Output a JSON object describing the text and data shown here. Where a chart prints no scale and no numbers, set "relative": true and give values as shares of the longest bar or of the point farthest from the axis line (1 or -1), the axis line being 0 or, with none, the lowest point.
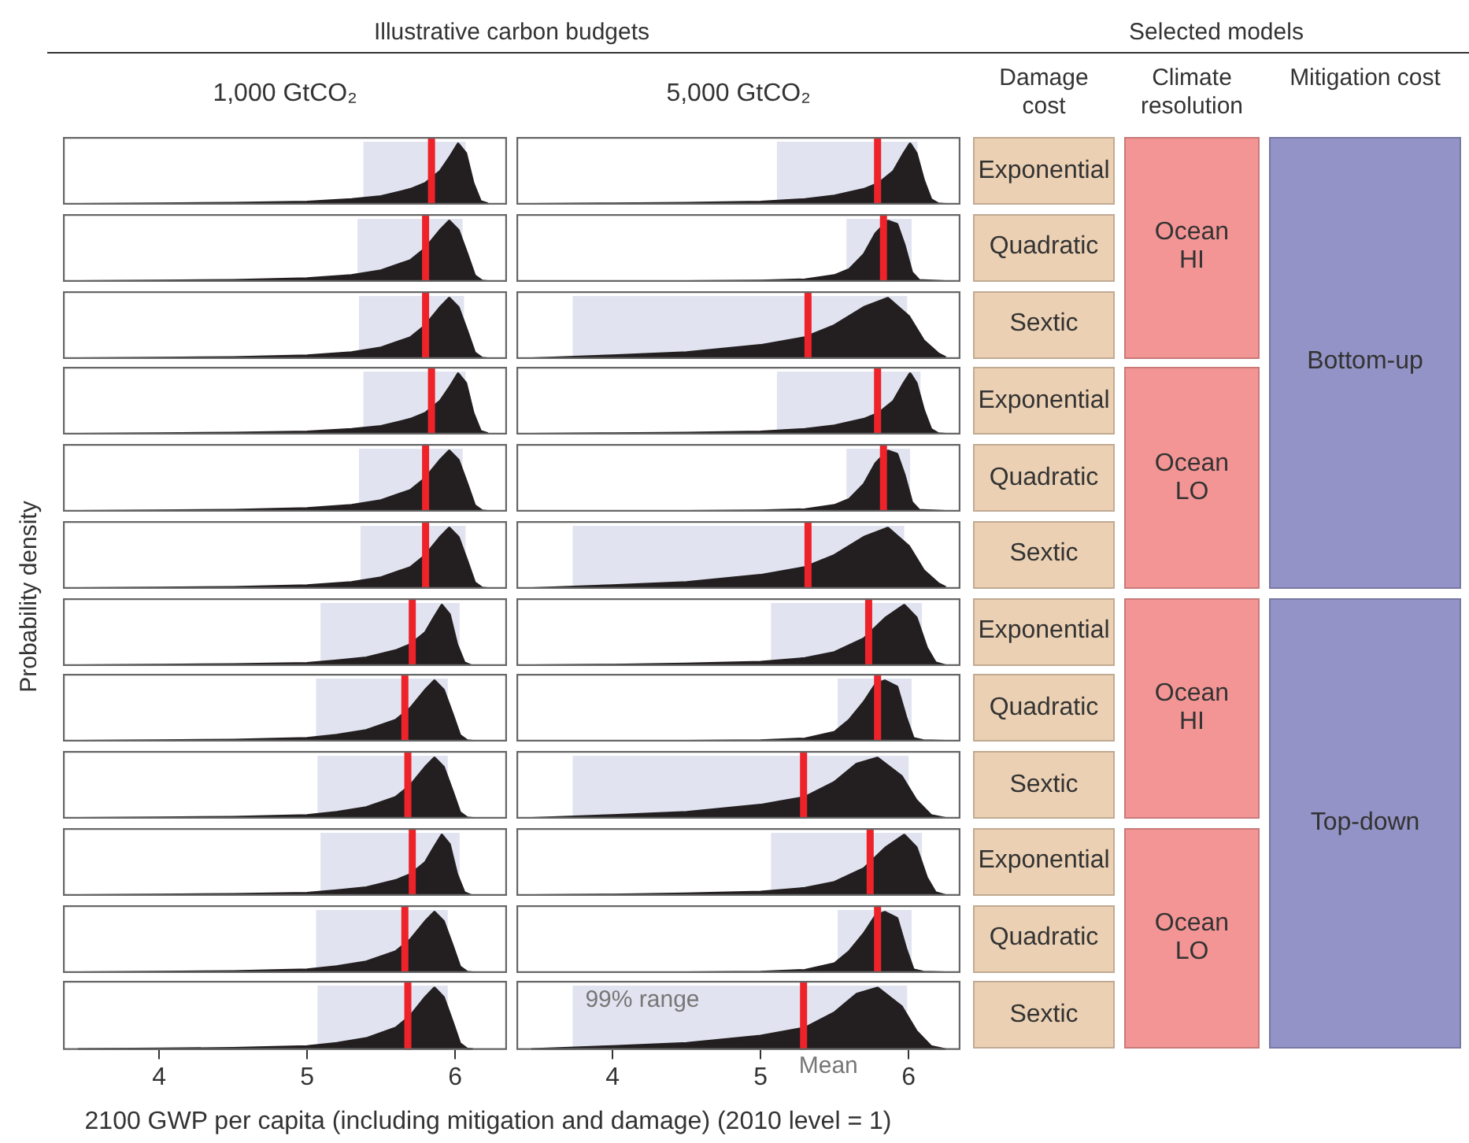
{
  "chart_data": [
    {
      "type": "area",
      "subtitle": "1,000 GtCO₂",
      "color": "#231f20",
      "relative": true,
      "xlim": [
        3.35,
        6.35
      ],
      "tick_labels": false,
      "x": [
        3.45,
        4.0,
        4.5,
        5.0,
        5.3,
        5.5,
        5.7,
        5.8,
        5.9,
        5.97,
        6.02,
        6.07,
        6.12,
        6.17,
        6.22
      ],
      "values": [
        0,
        0.01,
        0.02,
        0.04,
        0.08,
        0.13,
        0.25,
        0.35,
        0.55,
        0.8,
        1,
        0.85,
        0.35,
        0.05,
        0.01
      ],
      "bands": [
        {
          "axis": "x",
          "from": 5.38,
          "to": 6.07,
          "color": "#e1e3f0"
        }
      ],
      "ref_lines": [
        {
          "axis": "x",
          "value": 5.84,
          "color": "#ee2229"
        }
      ]
    },
    {
      "type": "area",
      "subtitle": "5,000 GtCO₂",
      "color": "#231f20",
      "relative": true,
      "xlim": [
        3.35,
        6.35
      ],
      "tick_labels": false,
      "x": [
        3.45,
        4.0,
        4.5,
        5.0,
        5.3,
        5.5,
        5.7,
        5.8,
        5.9,
        5.97,
        6.01,
        6.05,
        6.1,
        6.15,
        6.2,
        6.25
      ],
      "values": [
        0,
        0.01,
        0.02,
        0.04,
        0.08,
        0.14,
        0.25,
        0.35,
        0.55,
        0.85,
        1,
        0.85,
        0.4,
        0.08,
        0.01,
        0
      ],
      "bands": [
        {
          "axis": "x",
          "from": 5.11,
          "to": 6.06,
          "color": "#e1e3f0"
        }
      ],
      "ref_lines": [
        {
          "axis": "x",
          "value": 5.79,
          "color": "#ee2229"
        }
      ]
    },
    {
      "type": "area",
      "color": "#231f20",
      "relative": true,
      "xlim": [
        3.35,
        6.35
      ],
      "tick_labels": false,
      "x": [
        3.45,
        4.0,
        4.5,
        5.0,
        5.3,
        5.5,
        5.7,
        5.8,
        5.9,
        5.96,
        6.02,
        6.08,
        6.13,
        6.18,
        6.22
      ],
      "values": [
        0,
        0.01,
        0.02,
        0.05,
        0.1,
        0.18,
        0.35,
        0.55,
        0.85,
        1,
        0.85,
        0.45,
        0.1,
        0.01,
        0
      ],
      "bands": [
        {
          "axis": "x",
          "from": 5.34,
          "to": 6.05,
          "color": "#e1e3f0"
        }
      ],
      "ref_lines": [
        {
          "axis": "x",
          "value": 5.8,
          "color": "#ee2229"
        }
      ]
    },
    {
      "type": "area",
      "color": "#231f20",
      "relative": true,
      "xlim": [
        3.35,
        6.35
      ],
      "tick_labels": false,
      "x": [
        3.45,
        4.0,
        4.5,
        5.0,
        5.3,
        5.5,
        5.6,
        5.7,
        5.78,
        5.86,
        5.92,
        5.97,
        6.02,
        6.07,
        6.25
      ],
      "values": [
        0,
        0,
        0,
        0.01,
        0.03,
        0.1,
        0.2,
        0.45,
        0.8,
        1,
        0.95,
        0.6,
        0.15,
        0.02,
        0
      ],
      "bands": [
        {
          "axis": "x",
          "from": 5.58,
          "to": 6.02,
          "color": "#e1e3f0"
        }
      ],
      "ref_lines": [
        {
          "axis": "x",
          "value": 5.83,
          "color": "#ee2229"
        }
      ]
    },
    {
      "type": "area",
      "color": "#231f20",
      "relative": true,
      "xlim": [
        3.35,
        6.35
      ],
      "tick_labels": false,
      "x": [
        3.45,
        4.0,
        4.5,
        5.0,
        5.3,
        5.5,
        5.7,
        5.8,
        5.9,
        5.96,
        6.02,
        6.08,
        6.13,
        6.18,
        6.22
      ],
      "values": [
        0,
        0.01,
        0.02,
        0.05,
        0.1,
        0.18,
        0.35,
        0.55,
        0.85,
        1,
        0.85,
        0.45,
        0.1,
        0.01,
        0
      ],
      "bands": [
        {
          "axis": "x",
          "from": 5.35,
          "to": 6.06,
          "color": "#e1e3f0"
        }
      ],
      "ref_lines": [
        {
          "axis": "x",
          "value": 5.8,
          "color": "#ee2229"
        }
      ]
    },
    {
      "type": "area",
      "color": "#231f20",
      "relative": true,
      "xlim": [
        3.35,
        6.35
      ],
      "tick_labels": false,
      "x": [
        3.45,
        4.0,
        4.5,
        5.0,
        5.3,
        5.5,
        5.7,
        5.86,
        6.0,
        6.1,
        6.2,
        6.25
      ],
      "values": [
        0,
        0.05,
        0.1,
        0.22,
        0.35,
        0.55,
        0.85,
        1,
        0.7,
        0.3,
        0.08,
        0.02
      ],
      "bands": [
        {
          "axis": "x",
          "from": 3.73,
          "to": 5.99,
          "color": "#e1e3f0"
        }
      ],
      "ref_lines": [
        {
          "axis": "x",
          "value": 5.32,
          "color": "#ee2229"
        }
      ]
    },
    {
      "type": "area",
      "color": "#231f20",
      "relative": true,
      "xlim": [
        3.35,
        6.35
      ],
      "tick_labels": false,
      "x": [
        3.45,
        4.0,
        4.5,
        5.0,
        5.3,
        5.5,
        5.7,
        5.8,
        5.9,
        5.97,
        6.02,
        6.07,
        6.12,
        6.17,
        6.22
      ],
      "values": [
        0,
        0.01,
        0.02,
        0.04,
        0.08,
        0.13,
        0.25,
        0.35,
        0.55,
        0.8,
        1,
        0.85,
        0.35,
        0.05,
        0.01
      ],
      "bands": [
        {
          "axis": "x",
          "from": 5.38,
          "to": 6.07,
          "color": "#e1e3f0"
        }
      ],
      "ref_lines": [
        {
          "axis": "x",
          "value": 5.84,
          "color": "#ee2229"
        }
      ]
    },
    {
      "type": "area",
      "color": "#231f20",
      "relative": true,
      "xlim": [
        3.35,
        6.35
      ],
      "tick_labels": false,
      "x": [
        3.45,
        4.0,
        4.5,
        5.0,
        5.3,
        5.5,
        5.7,
        5.8,
        5.9,
        5.97,
        6.01,
        6.05,
        6.1,
        6.15,
        6.2,
        6.25
      ],
      "values": [
        0,
        0.01,
        0.02,
        0.04,
        0.08,
        0.14,
        0.25,
        0.35,
        0.55,
        0.85,
        1,
        0.85,
        0.4,
        0.08,
        0.01,
        0
      ],
      "bands": [
        {
          "axis": "x",
          "from": 5.11,
          "to": 6.08,
          "color": "#e1e3f0"
        }
      ],
      "ref_lines": [
        {
          "axis": "x",
          "value": 5.79,
          "color": "#ee2229"
        }
      ]
    },
    {
      "type": "area",
      "color": "#231f20",
      "relative": true,
      "xlim": [
        3.35,
        6.35
      ],
      "tick_labels": false,
      "x": [
        3.45,
        4.0,
        4.5,
        5.0,
        5.3,
        5.5,
        5.7,
        5.8,
        5.9,
        5.96,
        6.02,
        6.08,
        6.13,
        6.18,
        6.22
      ],
      "values": [
        0,
        0.01,
        0.02,
        0.05,
        0.1,
        0.18,
        0.35,
        0.55,
        0.85,
        1,
        0.85,
        0.45,
        0.1,
        0.01,
        0
      ],
      "bands": [
        {
          "axis": "x",
          "from": 5.35,
          "to": 6.05,
          "color": "#e1e3f0"
        }
      ],
      "ref_lines": [
        {
          "axis": "x",
          "value": 5.8,
          "color": "#ee2229"
        }
      ]
    },
    {
      "type": "area",
      "color": "#231f20",
      "relative": true,
      "xlim": [
        3.35,
        6.35
      ],
      "tick_labels": false,
      "x": [
        3.45,
        4.0,
        4.5,
        5.0,
        5.3,
        5.5,
        5.6,
        5.7,
        5.78,
        5.86,
        5.92,
        5.97,
        6.02,
        6.07,
        6.25
      ],
      "values": [
        0,
        0,
        0,
        0.01,
        0.03,
        0.1,
        0.2,
        0.45,
        0.8,
        1,
        0.95,
        0.6,
        0.15,
        0.02,
        0
      ],
      "bands": [
        {
          "axis": "x",
          "from": 5.58,
          "to": 6.01,
          "color": "#e1e3f0"
        }
      ],
      "ref_lines": [
        {
          "axis": "x",
          "value": 5.83,
          "color": "#ee2229"
        }
      ]
    },
    {
      "type": "area",
      "color": "#231f20",
      "relative": true,
      "xlim": [
        3.35,
        6.35
      ],
      "tick_labels": false,
      "x": [
        3.45,
        4.0,
        4.5,
        5.0,
        5.3,
        5.5,
        5.7,
        5.8,
        5.9,
        5.96,
        6.02,
        6.08,
        6.13,
        6.18,
        6.22
      ],
      "values": [
        0,
        0.01,
        0.02,
        0.05,
        0.1,
        0.18,
        0.35,
        0.55,
        0.85,
        1,
        0.85,
        0.45,
        0.1,
        0.01,
        0
      ],
      "bands": [
        {
          "axis": "x",
          "from": 5.36,
          "to": 6.07,
          "color": "#e1e3f0"
        }
      ],
      "ref_lines": [
        {
          "axis": "x",
          "value": 5.8,
          "color": "#ee2229"
        }
      ]
    },
    {
      "type": "area",
      "color": "#231f20",
      "relative": true,
      "xlim": [
        3.35,
        6.35
      ],
      "tick_labels": false,
      "x": [
        3.45,
        4.0,
        4.5,
        5.0,
        5.3,
        5.5,
        5.7,
        5.86,
        6.0,
        6.1,
        6.2,
        6.25
      ],
      "values": [
        0,
        0.05,
        0.1,
        0.22,
        0.35,
        0.55,
        0.85,
        1,
        0.7,
        0.3,
        0.08,
        0.02
      ],
      "bands": [
        {
          "axis": "x",
          "from": 3.73,
          "to": 5.97,
          "color": "#e1e3f0"
        }
      ],
      "ref_lines": [
        {
          "axis": "x",
          "value": 5.32,
          "color": "#ee2229"
        }
      ]
    },
    {
      "type": "area",
      "color": "#231f20",
      "relative": true,
      "xlim": [
        3.35,
        6.35
      ],
      "tick_labels": false,
      "x": [
        3.45,
        4.0,
        4.5,
        5.0,
        5.2,
        5.4,
        5.6,
        5.7,
        5.8,
        5.86,
        5.91,
        5.96,
        6.01,
        6.06,
        6.11
      ],
      "values": [
        0,
        0.01,
        0.02,
        0.04,
        0.08,
        0.13,
        0.25,
        0.35,
        0.55,
        0.8,
        1,
        0.85,
        0.35,
        0.05,
        0
      ],
      "bands": [
        {
          "axis": "x",
          "from": 5.09,
          "to": 6.03,
          "color": "#e1e3f0"
        }
      ],
      "ref_lines": [
        {
          "axis": "x",
          "value": 5.71,
          "color": "#ee2229"
        }
      ]
    },
    {
      "type": "area",
      "color": "#231f20",
      "relative": true,
      "xlim": [
        3.35,
        6.35
      ],
      "tick_labels": false,
      "x": [
        3.45,
        4.0,
        4.5,
        5.0,
        5.3,
        5.5,
        5.7,
        5.85,
        5.97,
        6.05,
        6.12,
        6.18,
        6.25
      ],
      "values": [
        0,
        0.01,
        0.03,
        0.06,
        0.12,
        0.22,
        0.45,
        0.8,
        1,
        0.8,
        0.3,
        0.05,
        0
      ],
      "bands": [
        {
          "axis": "x",
          "from": 5.07,
          "to": 6.09,
          "color": "#e1e3f0"
        }
      ],
      "ref_lines": [
        {
          "axis": "x",
          "value": 5.73,
          "color": "#ee2229"
        }
      ]
    },
    {
      "type": "area",
      "color": "#231f20",
      "relative": true,
      "xlim": [
        3.35,
        6.35
      ],
      "tick_labels": false,
      "x": [
        3.45,
        4.0,
        4.5,
        5.0,
        5.2,
        5.4,
        5.6,
        5.7,
        5.8,
        5.86,
        5.92,
        5.98,
        6.03,
        6.08,
        6.12
      ],
      "values": [
        0,
        0.01,
        0.02,
        0.05,
        0.1,
        0.18,
        0.35,
        0.55,
        0.85,
        1,
        0.85,
        0.45,
        0.1,
        0.01,
        0
      ],
      "bands": [
        {
          "axis": "x",
          "from": 5.06,
          "to": 5.95,
          "color": "#e1e3f0"
        }
      ],
      "ref_lines": [
        {
          "axis": "x",
          "value": 5.66,
          "color": "#ee2229"
        }
      ]
    },
    {
      "type": "area",
      "color": "#231f20",
      "relative": true,
      "xlim": [
        3.35,
        6.35
      ],
      "tick_labels": false,
      "x": [
        3.45,
        4.5,
        5.0,
        5.3,
        5.5,
        5.6,
        5.7,
        5.78,
        5.84,
        5.92,
        5.98,
        6.03,
        6.1,
        6.25
      ],
      "values": [
        0,
        0,
        0.01,
        0.04,
        0.15,
        0.35,
        0.65,
        0.95,
        1,
        0.9,
        0.4,
        0.05,
        0.01,
        0
      ],
      "bands": [
        {
          "axis": "x",
          "from": 5.52,
          "to": 6.02,
          "color": "#e1e3f0"
        }
      ],
      "ref_lines": [
        {
          "axis": "x",
          "value": 5.79,
          "color": "#ee2229"
        }
      ]
    },
    {
      "type": "area",
      "color": "#231f20",
      "relative": true,
      "xlim": [
        3.35,
        6.35
      ],
      "tick_labels": false,
      "x": [
        3.45,
        4.0,
        4.5,
        5.0,
        5.2,
        5.4,
        5.6,
        5.7,
        5.8,
        5.86,
        5.92,
        5.98,
        6.03,
        6.08,
        6.12
      ],
      "values": [
        0,
        0.01,
        0.02,
        0.05,
        0.1,
        0.18,
        0.35,
        0.55,
        0.85,
        1,
        0.85,
        0.45,
        0.1,
        0.01,
        0
      ],
      "bands": [
        {
          "axis": "x",
          "from": 5.07,
          "to": 5.95,
          "color": "#e1e3f0"
        }
      ],
      "ref_lines": [
        {
          "axis": "x",
          "value": 5.68,
          "color": "#ee2229"
        }
      ]
    },
    {
      "type": "area",
      "color": "#231f20",
      "relative": true,
      "xlim": [
        3.35,
        6.35
      ],
      "tick_labels": false,
      "x": [
        3.45,
        4.0,
        4.5,
        5.0,
        5.3,
        5.5,
        5.65,
        5.79,
        5.95,
        6.05,
        6.15,
        6.25
      ],
      "values": [
        0,
        0.05,
        0.1,
        0.22,
        0.35,
        0.6,
        0.9,
        1,
        0.7,
        0.3,
        0.05,
        0
      ],
      "bands": [
        {
          "axis": "x",
          "from": 3.73,
          "to": 6.0,
          "color": "#e1e3f0"
        }
      ],
      "ref_lines": [
        {
          "axis": "x",
          "value": 5.29,
          "color": "#ee2229"
        }
      ]
    },
    {
      "type": "area",
      "color": "#231f20",
      "relative": true,
      "xlim": [
        3.35,
        6.35
      ],
      "tick_labels": false,
      "x": [
        3.45,
        4.0,
        4.5,
        5.0,
        5.2,
        5.4,
        5.6,
        5.7,
        5.8,
        5.86,
        5.91,
        5.96,
        6.01,
        6.06,
        6.11
      ],
      "values": [
        0,
        0.01,
        0.02,
        0.04,
        0.08,
        0.13,
        0.25,
        0.35,
        0.55,
        0.8,
        1,
        0.85,
        0.35,
        0.05,
        0
      ],
      "bands": [
        {
          "axis": "x",
          "from": 5.09,
          "to": 6.03,
          "color": "#e1e3f0"
        }
      ],
      "ref_lines": [
        {
          "axis": "x",
          "value": 5.71,
          "color": "#ee2229"
        }
      ]
    },
    {
      "type": "area",
      "color": "#231f20",
      "relative": true,
      "xlim": [
        3.35,
        6.35
      ],
      "tick_labels": false,
      "x": [
        3.45,
        4.0,
        4.5,
        5.0,
        5.3,
        5.5,
        5.7,
        5.85,
        5.97,
        6.05,
        6.12,
        6.18,
        6.25
      ],
      "values": [
        0,
        0.01,
        0.03,
        0.06,
        0.12,
        0.22,
        0.45,
        0.8,
        1,
        0.8,
        0.3,
        0.05,
        0
      ],
      "bands": [
        {
          "axis": "x",
          "from": 5.07,
          "to": 6.09,
          "color": "#e1e3f0"
        }
      ],
      "ref_lines": [
        {
          "axis": "x",
          "value": 5.74,
          "color": "#ee2229"
        }
      ]
    },
    {
      "type": "area",
      "color": "#231f20",
      "relative": true,
      "xlim": [
        3.35,
        6.35
      ],
      "tick_labels": false,
      "x": [
        3.45,
        4.0,
        4.5,
        5.0,
        5.2,
        5.4,
        5.6,
        5.7,
        5.8,
        5.86,
        5.92,
        5.98,
        6.03,
        6.08,
        6.12
      ],
      "values": [
        0,
        0.01,
        0.02,
        0.05,
        0.1,
        0.18,
        0.35,
        0.55,
        0.85,
        1,
        0.85,
        0.45,
        0.1,
        0.01,
        0
      ],
      "bands": [
        {
          "axis": "x",
          "from": 5.06,
          "to": 5.95,
          "color": "#e1e3f0"
        }
      ],
      "ref_lines": [
        {
          "axis": "x",
          "value": 5.66,
          "color": "#ee2229"
        }
      ]
    },
    {
      "type": "area",
      "color": "#231f20",
      "relative": true,
      "xlim": [
        3.35,
        6.35
      ],
      "tick_labels": false,
      "x": [
        3.45,
        4.5,
        5.0,
        5.3,
        5.5,
        5.6,
        5.7,
        5.78,
        5.84,
        5.92,
        5.98,
        6.03,
        6.1,
        6.25
      ],
      "values": [
        0,
        0,
        0.01,
        0.04,
        0.15,
        0.35,
        0.65,
        0.95,
        1,
        0.9,
        0.4,
        0.05,
        0.01,
        0
      ],
      "bands": [
        {
          "axis": "x",
          "from": 5.52,
          "to": 6.02,
          "color": "#e1e3f0"
        }
      ],
      "ref_lines": [
        {
          "axis": "x",
          "value": 5.79,
          "color": "#ee2229"
        }
      ]
    },
    {
      "type": "area",
      "color": "#231f20",
      "relative": true,
      "xlim": [
        3.35,
        6.35
      ],
      "xticks": [
        4,
        5,
        6
      ],
      "tick_labels": "x",
      "x": [
        3.45,
        4.0,
        4.5,
        5.0,
        5.2,
        5.4,
        5.6,
        5.7,
        5.8,
        5.86,
        5.92,
        5.98,
        6.03,
        6.08,
        6.12
      ],
      "values": [
        0,
        0.01,
        0.02,
        0.05,
        0.1,
        0.18,
        0.35,
        0.55,
        0.85,
        1,
        0.85,
        0.45,
        0.1,
        0.01,
        0
      ],
      "bands": [
        {
          "axis": "x",
          "from": 5.07,
          "to": 5.95,
          "color": "#e1e3f0"
        }
      ],
      "ref_lines": [
        {
          "axis": "x",
          "value": 5.68,
          "color": "#ee2229"
        }
      ]
    },
    {
      "type": "area",
      "color": "#231f20",
      "relative": true,
      "xlim": [
        3.35,
        6.35
      ],
      "xticks": [
        4,
        5,
        6
      ],
      "tick_labels": "x",
      "x": [
        3.45,
        4.0,
        4.5,
        5.0,
        5.3,
        5.5,
        5.65,
        5.79,
        5.95,
        6.05,
        6.15,
        6.25
      ],
      "values": [
        0,
        0.05,
        0.1,
        0.22,
        0.35,
        0.6,
        0.9,
        1,
        0.7,
        0.3,
        0.05,
        0
      ],
      "bands": [
        {
          "axis": "x",
          "from": 3.73,
          "to": 5.99,
          "color": "#e1e3f0",
          "label": "99% range"
        }
      ],
      "ref_lines": [
        {
          "axis": "x",
          "value": 5.29,
          "color": "#ee2229",
          "label": "Mean"
        }
      ]
    },
    {
      "type": "other",
      "title": "Selected models",
      "categories": [
        "Damage cost",
        "Climate resolution",
        "Mitigation cost"
      ],
      "colors": [
        "#ebd0b3",
        "#f49595",
        "#9393c7"
      ],
      "annotations": [
        "Illustrative carbon budgets",
        "Probability density",
        "2100 GWP per capita (including mitigation and damage) (2010 level = 1)",
        {
          "text": "Exponential",
          "x": "Damage cost"
        },
        {
          "text": "Quadratic",
          "x": "Damage cost"
        },
        {
          "text": "Sextic",
          "x": "Damage cost"
        },
        {
          "text": "Exponential",
          "x": "Damage cost"
        },
        {
          "text": "Quadratic",
          "x": "Damage cost"
        },
        {
          "text": "Sextic",
          "x": "Damage cost"
        },
        {
          "text": "Exponential",
          "x": "Damage cost"
        },
        {
          "text": "Quadratic",
          "x": "Damage cost"
        },
        {
          "text": "Sextic",
          "x": "Damage cost"
        },
        {
          "text": "Exponential",
          "x": "Damage cost"
        },
        {
          "text": "Quadratic",
          "x": "Damage cost"
        },
        {
          "text": "Sextic",
          "x": "Damage cost"
        },
        {
          "text": "Ocean\nHI",
          "x": "Climate resolution"
        },
        {
          "text": "Ocean\nLO",
          "x": "Climate resolution"
        },
        {
          "text": "Ocean\nHI",
          "x": "Climate resolution"
        },
        {
          "text": "Ocean\nLO",
          "x": "Climate resolution"
        },
        {
          "text": "Bottom-up",
          "x": "Mitigation cost"
        },
        {
          "text": "Top-down",
          "x": "Mitigation cost"
        }
      ]
    }
  ]
}
